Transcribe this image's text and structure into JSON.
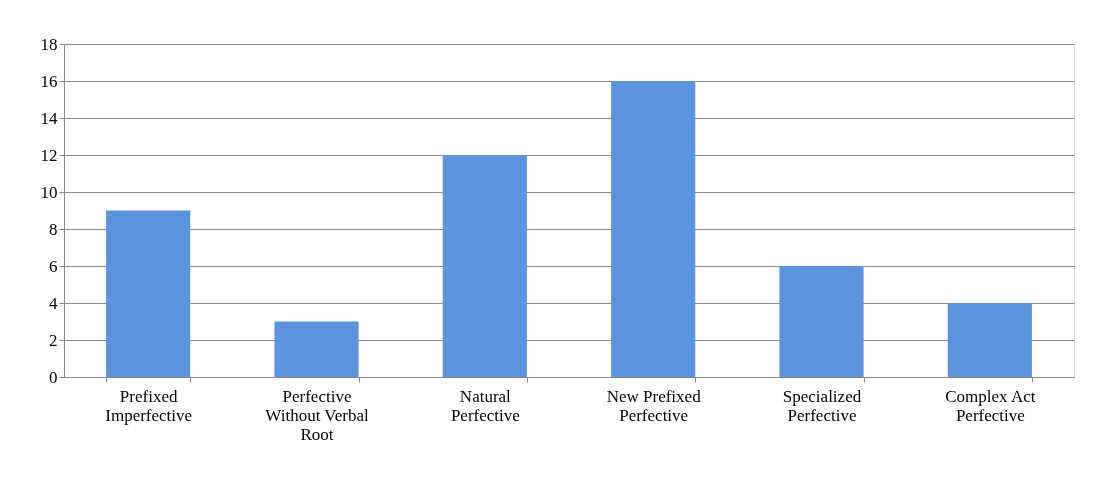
{
  "chart_data": {
    "type": "bar",
    "categories": [
      "Prefixed Imperfective",
      "Perfective Without Verbal Root",
      "Natural Perfective",
      "New Prefixed Perfective",
      "Specialized Perfective",
      "Complex Act Perfective"
    ],
    "values": [
      9,
      3,
      12,
      16,
      6,
      4
    ],
    "color": "#5b93df",
    "ylim": [
      0,
      18
    ],
    "yticks": [
      0,
      2,
      4,
      6,
      8,
      10,
      12,
      14,
      16,
      18
    ],
    "grid": "y"
  }
}
